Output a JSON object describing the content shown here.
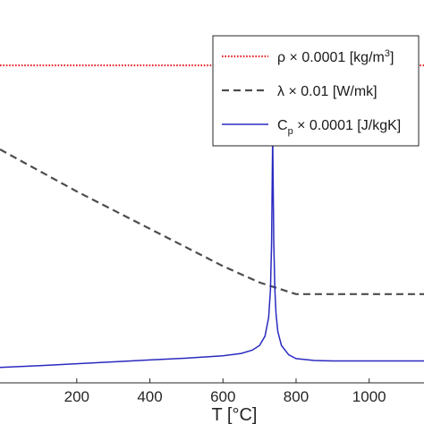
{
  "chart_data": {
    "type": "line",
    "xlabel": "T [°C]",
    "xlim": [
      -10,
      1150
    ],
    "ylim": [
      0.1,
      0.92
    ],
    "xticks": [
      200,
      400,
      600,
      800,
      1000
    ],
    "grid": false,
    "legend_position": "top-right",
    "series": [
      {
        "name": "ρ × 0.0001 [kg/m³]",
        "legend": {
          "main": "ρ × 0.0001 [kg/m",
          "sup": "3",
          "tail": "]"
        },
        "style": "dotted",
        "color": "#e8262d",
        "x": [
          -10,
          1150
        ],
        "y": [
          0.78,
          0.78
        ]
      },
      {
        "name": "λ × 0.01 [W/mk]",
        "legend": {
          "main": "λ × 0.01 [W/mk]"
        },
        "style": "dashed",
        "color": "#4d4d4d",
        "x": [
          -10,
          200,
          400,
          600,
          700,
          800,
          900,
          1000,
          1150
        ],
        "y": [
          0.6,
          0.51,
          0.43,
          0.35,
          0.315,
          0.29,
          0.29,
          0.29,
          0.29
        ]
      },
      {
        "name": "Cp × 0.0001 [J/kgK]",
        "legend": {
          "main": "C",
          "sub": "p",
          "tail": " × 0.0001 [J/kgK]"
        },
        "style": "solid",
        "color": "#2a2ac0",
        "x": [
          -10,
          100,
          200,
          300,
          400,
          500,
          600,
          650,
          680,
          700,
          715,
          725,
          730,
          733,
          736,
          739,
          742,
          745,
          750,
          760,
          780,
          800,
          850,
          900,
          1000,
          1150
        ],
        "y": [
          0.133,
          0.137,
          0.141,
          0.145,
          0.149,
          0.153,
          0.158,
          0.163,
          0.17,
          0.18,
          0.2,
          0.24,
          0.3,
          0.4,
          0.63,
          0.4,
          0.3,
          0.25,
          0.21,
          0.18,
          0.16,
          0.152,
          0.148,
          0.147,
          0.147,
          0.147
        ]
      }
    ]
  }
}
